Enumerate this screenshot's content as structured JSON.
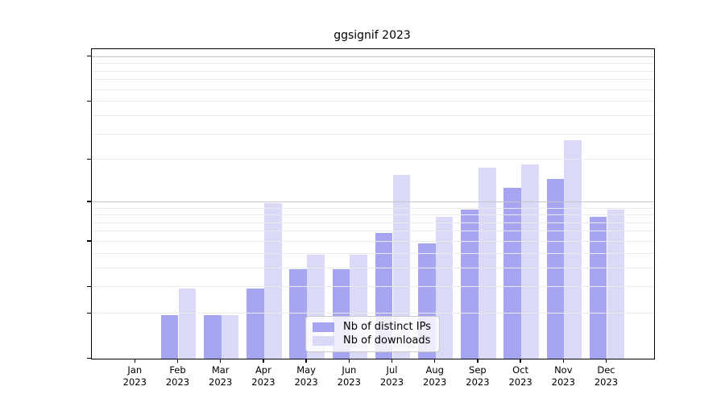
{
  "title": "ggsignif 2023",
  "chart_data": {
    "type": "bar",
    "title": "ggsignif 2023",
    "categories": [
      "Jan 2023",
      "Feb 2023",
      "Mar 2023",
      "Apr 2023",
      "May 2023",
      "Jun 2023",
      "Jul 2023",
      "Aug 2023",
      "Sep 2023",
      "Oct 2023",
      "Nov 2023",
      "Dec 2023"
    ],
    "series": [
      {
        "name": "Nb of distinct IPs",
        "color": "#a5a5f1",
        "values": [
          0,
          1,
          1,
          2,
          3,
          3,
          6,
          5,
          9,
          13,
          15,
          8
        ]
      },
      {
        "name": "Nb of downloads",
        "color": "#dadaf8",
        "values": [
          0,
          2,
          1,
          10,
          4,
          4,
          16,
          8,
          18,
          19,
          28,
          9
        ]
      }
    ],
    "xlabel": "",
    "ylabel": "",
    "y_scale": "log1p",
    "ylim": [
      0,
      105
    ],
    "y_axis_ticks": [
      100,
      50,
      20,
      10,
      5,
      2,
      1,
      0
    ],
    "y_minor_gridlines": [
      1,
      2,
      3,
      4,
      5,
      6,
      7,
      8,
      9,
      20,
      30,
      40,
      50,
      60,
      70,
      80,
      90
    ],
    "y_major_gridlines": [
      10,
      100
    ],
    "grid": true,
    "legend_position": "lower center"
  },
  "colors": {
    "bar_distinct_ips": "#a5a5f1",
    "bar_downloads": "#dadaf8",
    "minor_gridline": "#ebebeb",
    "major_gridline": "#c6c6c6",
    "spine": "#000000",
    "text": "#000000",
    "legend_border": "#c9c9c9",
    "legend_background": "rgba(255,255,255,0.8)"
  }
}
